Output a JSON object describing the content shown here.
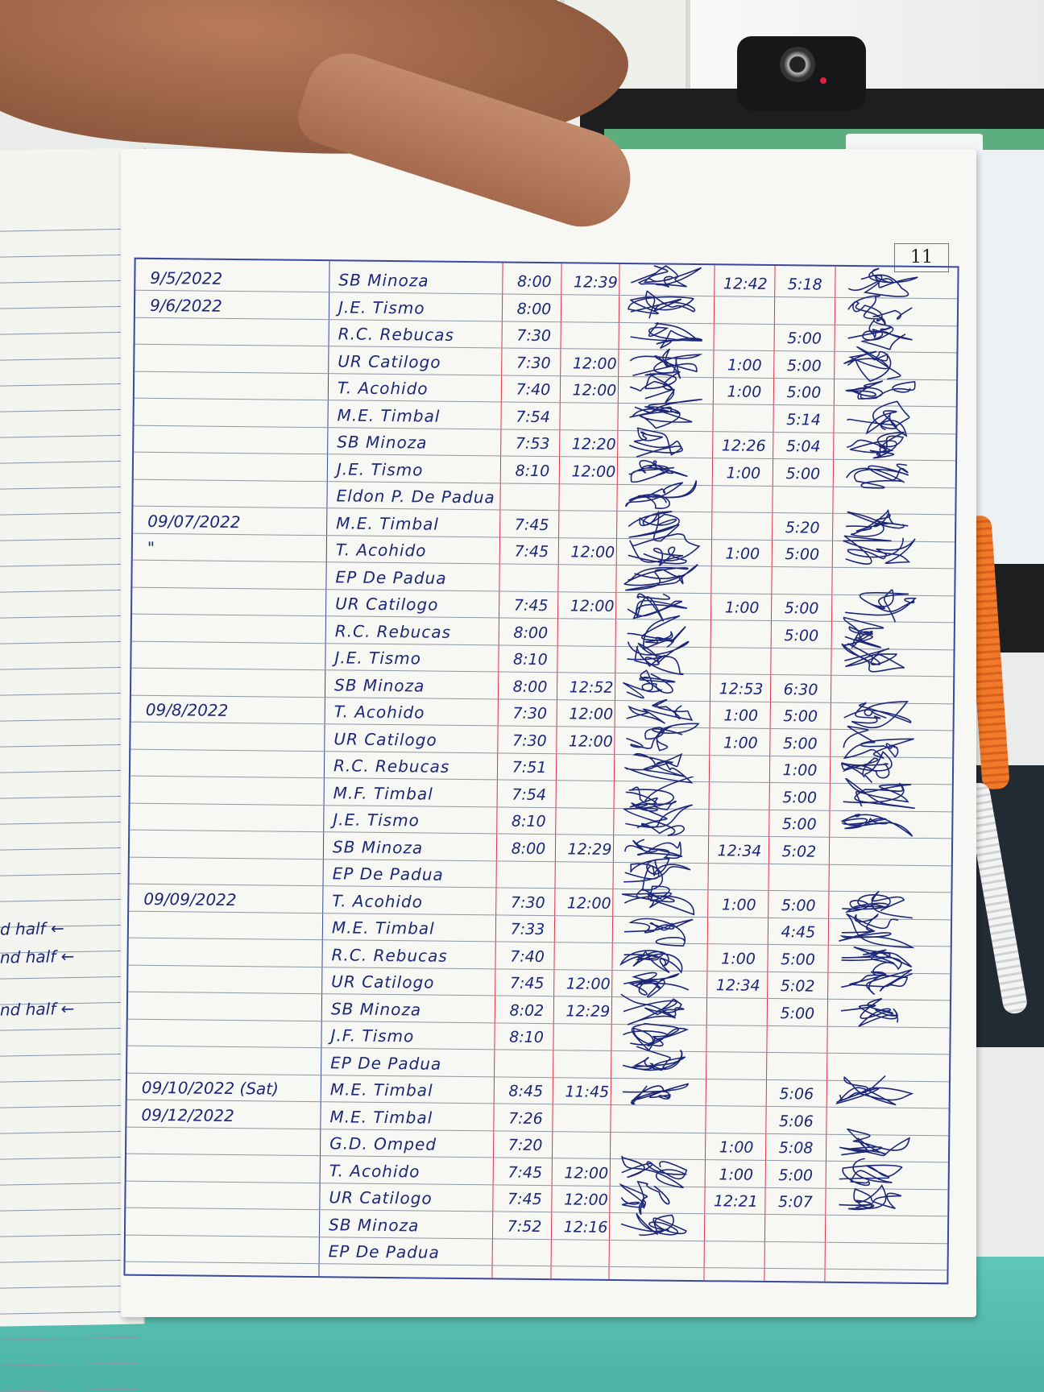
{
  "page_number": "11",
  "left_page_notes": [
    "d half",
    "nd half",
    "nd half"
  ],
  "colors": {
    "ink": "#1d2878",
    "ruling": "#3a49a0",
    "red_rule": "#e0304a",
    "desk": "#4bb3a5"
  },
  "rows": [
    {
      "date": "9/5/2022",
      "name": "SB Minoza",
      "am_in": "8:00",
      "am_out": "12:39",
      "pm_in": "12:42",
      "pm_out": "5:18",
      "sig_am": true,
      "sig_pm": true
    },
    {
      "date": "9/6/2022",
      "name": "J.E. Tismo",
      "am_in": "8:00",
      "am_out": "",
      "pm_in": "",
      "pm_out": "",
      "sig_am": true,
      "sig_pm": true
    },
    {
      "date": "",
      "name": "R.C. Rebucas",
      "am_in": "7:30",
      "am_out": "",
      "pm_in": "",
      "pm_out": "5:00",
      "sig_am": true,
      "sig_pm": true
    },
    {
      "date": "",
      "name": "UR Catilogo",
      "am_in": "7:30",
      "am_out": "12:00",
      "pm_in": "1:00",
      "pm_out": "5:00",
      "sig_am": true,
      "sig_pm": true
    },
    {
      "date": "",
      "name": "T. Acohido",
      "am_in": "7:40",
      "am_out": "12:00",
      "pm_in": "1:00",
      "pm_out": "5:00",
      "sig_am": true,
      "sig_pm": true
    },
    {
      "date": "",
      "name": "M.E. Timbal",
      "am_in": "7:54",
      "am_out": "",
      "pm_in": "",
      "pm_out": "5:14",
      "sig_am": true,
      "sig_pm": true
    },
    {
      "date": "",
      "name": "SB Minoza",
      "am_in": "7:53",
      "am_out": "12:20",
      "pm_in": "12:26",
      "pm_out": "5:04",
      "sig_am": true,
      "sig_pm": true
    },
    {
      "date": "",
      "name": "J.E. Tismo",
      "am_in": "8:10",
      "am_out": "12:00",
      "pm_in": "1:00",
      "pm_out": "5:00",
      "sig_am": true,
      "sig_pm": true
    },
    {
      "date": "",
      "name": "Eldon P. De Padua",
      "am_in": "",
      "am_out": "",
      "pm_in": "",
      "pm_out": "",
      "sig_am": true,
      "sig_pm": false
    },
    {
      "date": "09/07/2022",
      "name": "M.E. Timbal",
      "am_in": "7:45",
      "am_out": "",
      "pm_in": "",
      "pm_out": "5:20",
      "sig_am": true,
      "sig_pm": true
    },
    {
      "date": "\"",
      "name": "T. Acohido",
      "am_in": "7:45",
      "am_out": "12:00",
      "pm_in": "1:00",
      "pm_out": "5:00",
      "sig_am": true,
      "sig_pm": true
    },
    {
      "date": "",
      "name": "EP De Padua",
      "am_in": "",
      "am_out": "",
      "pm_in": "",
      "pm_out": "",
      "sig_am": true,
      "sig_pm": false
    },
    {
      "date": "",
      "name": "UR Catilogo",
      "am_in": "7:45",
      "am_out": "12:00",
      "pm_in": "1:00",
      "pm_out": "5:00",
      "sig_am": true,
      "sig_pm": true
    },
    {
      "date": "",
      "name": "R.C. Rebucas",
      "am_in": "8:00",
      "am_out": "",
      "pm_in": "",
      "pm_out": "5:00",
      "sig_am": true,
      "sig_pm": true
    },
    {
      "date": "",
      "name": "J.E. Tismo",
      "am_in": "8:10",
      "am_out": "",
      "pm_in": "",
      "pm_out": "",
      "sig_am": true,
      "sig_pm": true
    },
    {
      "date": "",
      "name": "SB Minoza",
      "am_in": "8:00",
      "am_out": "12:52",
      "pm_in": "12:53",
      "pm_out": "6:30",
      "sig_am": true,
      "sig_pm": false
    },
    {
      "date": "09/8/2022",
      "name": "T. Acohido",
      "am_in": "7:30",
      "am_out": "12:00",
      "pm_in": "1:00",
      "pm_out": "5:00",
      "sig_am": true,
      "sig_pm": true
    },
    {
      "date": "",
      "name": "UR Catilogo",
      "am_in": "7:30",
      "am_out": "12:00",
      "pm_in": "1:00",
      "pm_out": "5:00",
      "sig_am": true,
      "sig_pm": true
    },
    {
      "date": "",
      "name": "R.C. Rebucas",
      "am_in": "7:51",
      "am_out": "",
      "pm_in": "",
      "pm_out": "1:00",
      "sig_am": true,
      "sig_pm": true
    },
    {
      "date": "",
      "name": "M.F. Timbal",
      "am_in": "7:54",
      "am_out": "",
      "pm_in": "",
      "pm_out": "5:00",
      "sig_am": true,
      "sig_pm": true
    },
    {
      "date": "",
      "name": "J.E. Tismo",
      "am_in": "8:10",
      "am_out": "",
      "pm_in": "",
      "pm_out": "5:00",
      "sig_am": true,
      "sig_pm": true
    },
    {
      "date": "",
      "name": "SB Minoza",
      "am_in": "8:00",
      "am_out": "12:29",
      "pm_in": "12:34",
      "pm_out": "5:02",
      "sig_am": true,
      "sig_pm": false
    },
    {
      "date": "",
      "name": "EP De Padua",
      "am_in": "",
      "am_out": "",
      "pm_in": "",
      "pm_out": "",
      "sig_am": true,
      "sig_pm": false
    },
    {
      "date": "09/09/2022",
      "name": "T. Acohido",
      "am_in": "7:30",
      "am_out": "12:00",
      "pm_in": "1:00",
      "pm_out": "5:00",
      "sig_am": true,
      "sig_pm": true
    },
    {
      "date": "",
      "name": "M.E. Timbal",
      "am_in": "7:33",
      "am_out": "",
      "pm_in": "",
      "pm_out": "4:45",
      "sig_am": true,
      "sig_pm": true
    },
    {
      "date": "",
      "name": "R.C. Rebucas",
      "am_in": "7:40",
      "am_out": "",
      "pm_in": "1:00",
      "pm_out": "5:00",
      "sig_am": true,
      "sig_pm": true
    },
    {
      "date": "",
      "name": "UR Catilogo",
      "am_in": "7:45",
      "am_out": "12:00",
      "pm_in": "12:34",
      "pm_out": "5:02",
      "sig_am": true,
      "sig_pm": true
    },
    {
      "date": "",
      "name": "SB Minoza",
      "am_in": "8:02",
      "am_out": "12:29",
      "pm_in": "",
      "pm_out": "5:00",
      "sig_am": true,
      "sig_pm": true
    },
    {
      "date": "",
      "name": "J.F. Tismo",
      "am_in": "8:10",
      "am_out": "",
      "pm_in": "",
      "pm_out": "",
      "sig_am": true,
      "sig_pm": false
    },
    {
      "date": "",
      "name": "EP De Padua",
      "am_in": "",
      "am_out": "",
      "pm_in": "",
      "pm_out": "",
      "sig_am": true,
      "sig_pm": false
    },
    {
      "date": "09/10/2022 (Sat)",
      "name": "M.E. Timbal",
      "am_in": "8:45",
      "am_out": "11:45",
      "pm_in": "",
      "pm_out": "5:06",
      "sig_am": true,
      "sig_pm": true
    },
    {
      "date": "09/12/2022",
      "name": "M.E. Timbal",
      "am_in": "7:26",
      "am_out": "",
      "pm_in": "",
      "pm_out": "5:06",
      "sig_am": false,
      "sig_pm": false
    },
    {
      "date": "",
      "name": "G.D. Omped",
      "am_in": "7:20",
      "am_out": "",
      "pm_in": "1:00",
      "pm_out": "5:08",
      "sig_am": false,
      "sig_pm": true
    },
    {
      "date": "",
      "name": "T. Acohido",
      "am_in": "7:45",
      "am_out": "12:00",
      "pm_in": "1:00",
      "pm_out": "5:00",
      "sig_am": true,
      "sig_pm": true
    },
    {
      "date": "",
      "name": "UR Catilogo",
      "am_in": "7:45",
      "am_out": "12:00",
      "pm_in": "12:21",
      "pm_out": "5:07",
      "sig_am": true,
      "sig_pm": true
    },
    {
      "date": "",
      "name": "SB Minoza",
      "am_in": "7:52",
      "am_out": "12:16",
      "pm_in": "",
      "pm_out": "",
      "sig_am": true,
      "sig_pm": false
    },
    {
      "date": "",
      "name": "EP De Padua",
      "am_in": "",
      "am_out": "",
      "pm_in": "",
      "pm_out": "",
      "sig_am": false,
      "sig_pm": false
    }
  ]
}
